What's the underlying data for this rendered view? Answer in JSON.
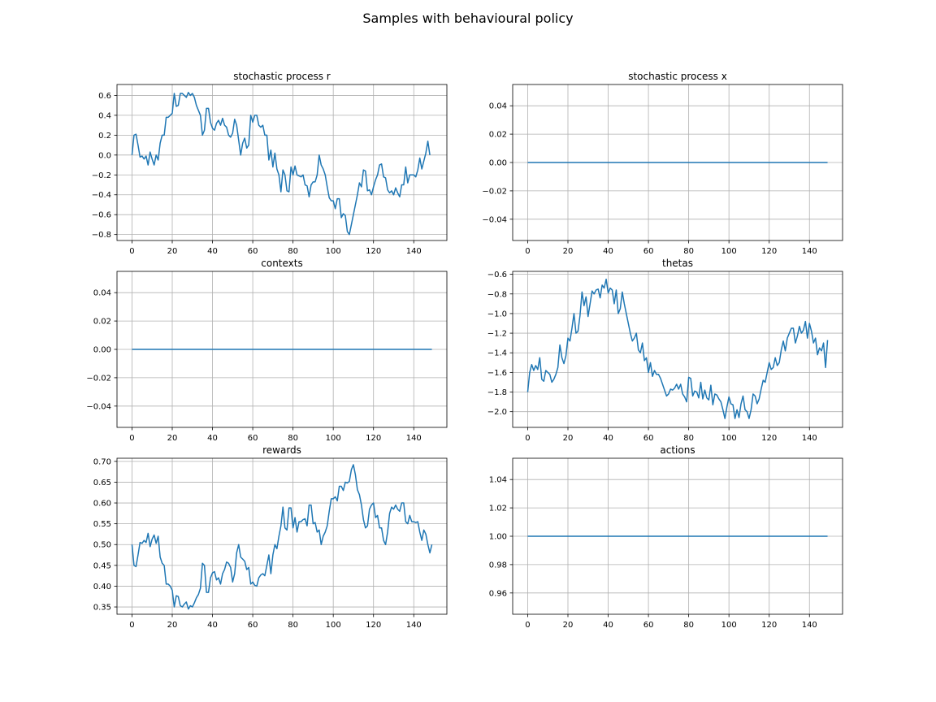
{
  "figure": {
    "title": "Samples with behavioural policy",
    "line_color": "#1f77b4",
    "grid_color": "#b0b0b0"
  },
  "chart_data": [
    {
      "type": "line",
      "title": "stochastic process r",
      "xlabel": "",
      "ylabel": "",
      "xlim": [
        -7.45,
        156.45
      ],
      "ylim": [
        -0.86,
        0.71
      ],
      "xticks": [
        0,
        20,
        40,
        60,
        80,
        100,
        120,
        140
      ],
      "yticks": [
        0.6,
        0.4,
        0.2,
        0.0,
        -0.2,
        -0.4,
        -0.6,
        -0.8
      ],
      "ytick_labels": [
        "0.6",
        "0.4",
        "0.2",
        "0.0",
        "−0.2",
        "−0.4",
        "−0.6",
        "−0.8"
      ],
      "grid": true,
      "series": [
        {
          "values": [
            0.0,
            0.2,
            0.21,
            0.1,
            -0.02,
            -0.01,
            -0.04,
            -0.01,
            -0.1,
            0.03,
            -0.04,
            -0.1,
            0.0,
            -0.05,
            0.12,
            0.2,
            0.2,
            0.38,
            0.38,
            0.4,
            0.42,
            0.62,
            0.49,
            0.5,
            0.62,
            0.62,
            0.6,
            0.58,
            0.63,
            0.6,
            0.62,
            0.58,
            0.5,
            0.45,
            0.4,
            0.2,
            0.25,
            0.47,
            0.47,
            0.33,
            0.27,
            0.25,
            0.32,
            0.35,
            0.3,
            0.37,
            0.3,
            0.28,
            0.2,
            0.18,
            0.22,
            0.36,
            0.3,
            0.15,
            0.0,
            0.12,
            0.17,
            0.07,
            0.1,
            0.4,
            0.33,
            0.4,
            0.4,
            0.3,
            0.28,
            0.3,
            0.2,
            0.2,
            -0.05,
            0.05,
            -0.12,
            0.02,
            -0.14,
            -0.2,
            -0.37,
            -0.15,
            -0.2,
            -0.36,
            -0.37,
            -0.12,
            -0.2,
            -0.11,
            -0.2,
            -0.21,
            -0.22,
            -0.2,
            -0.3,
            -0.31,
            -0.42,
            -0.3,
            -0.27,
            -0.27,
            -0.2,
            0.0,
            -0.1,
            -0.14,
            -0.2,
            -0.32,
            -0.43,
            -0.46,
            -0.46,
            -0.54,
            -0.44,
            -0.44,
            -0.63,
            -0.59,
            -0.61,
            -0.77,
            -0.8,
            -0.7,
            -0.6,
            -0.5,
            -0.4,
            -0.28,
            -0.32,
            -0.15,
            -0.16,
            -0.36,
            -0.35,
            -0.4,
            -0.32,
            -0.25,
            -0.2,
            -0.1,
            -0.09,
            -0.22,
            -0.23,
            -0.35,
            -0.38,
            -0.36,
            -0.4,
            -0.33,
            -0.38,
            -0.42,
            -0.3,
            -0.3,
            -0.12,
            -0.28,
            -0.2,
            -0.2,
            -0.2,
            -0.22,
            -0.15,
            -0.03,
            -0.14,
            -0.06,
            0.02,
            0.14,
            0.0
          ]
        }
      ]
    },
    {
      "type": "line",
      "title": "stochastic process x",
      "xlabel": "",
      "ylabel": "",
      "xlim": [
        -7.45,
        156.45
      ],
      "ylim": [
        -0.055,
        0.055
      ],
      "xticks": [
        0,
        20,
        40,
        60,
        80,
        100,
        120,
        140
      ],
      "yticks": [
        0.04,
        0.02,
        0.0,
        -0.02,
        -0.04
      ],
      "ytick_labels": [
        "0.04",
        "0.02",
        "0.00",
        "−0.02",
        "−0.04"
      ],
      "grid": true,
      "series": [
        {
          "x_range": [
            0,
            149
          ],
          "constant": 0.0
        }
      ]
    },
    {
      "type": "line",
      "title": "contexts",
      "xlabel": "",
      "ylabel": "",
      "xlim": [
        -7.45,
        156.45
      ],
      "ylim": [
        -0.055,
        0.055
      ],
      "xticks": [
        0,
        20,
        40,
        60,
        80,
        100,
        120,
        140
      ],
      "yticks": [
        0.04,
        0.02,
        0.0,
        -0.02,
        -0.04
      ],
      "ytick_labels": [
        "0.04",
        "0.02",
        "0.00",
        "−0.02",
        "−0.04"
      ],
      "grid": true,
      "series": [
        {
          "x_range": [
            0,
            149
          ],
          "constant": 0.0
        }
      ]
    },
    {
      "type": "line",
      "title": "thetas",
      "xlabel": "",
      "ylabel": "",
      "xlim": [
        -7.45,
        156.45
      ],
      "ylim": [
        -2.16,
        -0.57
      ],
      "xticks": [
        0,
        20,
        40,
        60,
        80,
        100,
        120,
        140
      ],
      "yticks": [
        -0.6,
        -0.8,
        -1.0,
        -1.2,
        -1.4,
        -1.6,
        -1.8,
        -2.0
      ],
      "ytick_labels": [
        "−0.6",
        "−0.8",
        "−1.0",
        "−1.2",
        "−1.4",
        "−1.6",
        "−1.8",
        "−2.0"
      ],
      "grid": true,
      "series": [
        {
          "values": [
            -1.8,
            -1.6,
            -1.52,
            -1.58,
            -1.53,
            -1.57,
            -1.45,
            -1.67,
            -1.69,
            -1.58,
            -1.6,
            -1.62,
            -1.7,
            -1.67,
            -1.62,
            -1.55,
            -1.32,
            -1.45,
            -1.51,
            -1.43,
            -1.25,
            -1.28,
            -1.15,
            -1.0,
            -1.2,
            -1.18,
            -1.02,
            -0.78,
            -0.92,
            -0.83,
            -1.03,
            -0.9,
            -0.77,
            -0.8,
            -0.76,
            -0.75,
            -0.84,
            -0.71,
            -0.74,
            -0.65,
            -0.79,
            -0.74,
            -0.76,
            -0.9,
            -0.76,
            -1.0,
            -0.95,
            -0.78,
            -0.9,
            -1.0,
            -1.1,
            -1.2,
            -1.28,
            -1.25,
            -1.2,
            -1.37,
            -1.4,
            -1.3,
            -1.48,
            -1.45,
            -1.6,
            -1.5,
            -1.64,
            -1.58,
            -1.62,
            -1.62,
            -1.66,
            -1.72,
            -1.78,
            -1.84,
            -1.82,
            -1.77,
            -1.78,
            -1.76,
            -1.72,
            -1.77,
            -1.72,
            -1.82,
            -1.85,
            -1.9,
            -1.65,
            -1.66,
            -1.84,
            -1.79,
            -1.8,
            -1.86,
            -1.7,
            -1.87,
            -1.78,
            -1.86,
            -1.88,
            -1.73,
            -1.93,
            -1.82,
            -1.83,
            -1.87,
            -1.9,
            -1.98,
            -2.07,
            -1.95,
            -1.85,
            -1.92,
            -1.93,
            -2.07,
            -1.98,
            -2.06,
            -1.92,
            -1.84,
            -1.98,
            -2.0,
            -2.07,
            -1.98,
            -1.82,
            -1.84,
            -1.92,
            -1.87,
            -1.77,
            -1.68,
            -1.7,
            -1.6,
            -1.5,
            -1.57,
            -1.55,
            -1.45,
            -1.53,
            -1.5,
            -1.37,
            -1.28,
            -1.38,
            -1.25,
            -1.2,
            -1.15,
            -1.15,
            -1.3,
            -1.23,
            -1.13,
            -1.2,
            -1.17,
            -1.08,
            -1.25,
            -1.1,
            -1.18,
            -1.3,
            -1.25,
            -1.42,
            -1.35,
            -1.38,
            -1.3,
            -1.55,
            -1.27
          ]
        }
      ]
    },
    {
      "type": "line",
      "title": "rewards",
      "xlabel": "",
      "ylabel": "",
      "xlim": [
        -7.45,
        156.45
      ],
      "ylim": [
        0.3325,
        0.7075
      ],
      "xticks": [
        0,
        20,
        40,
        60,
        80,
        100,
        120,
        140
      ],
      "yticks": [
        0.7,
        0.65,
        0.6,
        0.55,
        0.5,
        0.45,
        0.4,
        0.35
      ],
      "ytick_labels": [
        "0.70",
        "0.65",
        "0.60",
        "0.55",
        "0.50",
        "0.45",
        "0.40",
        "0.35"
      ],
      "grid": true,
      "series": [
        {
          "values": [
            0.5,
            0.45,
            0.447,
            0.475,
            0.505,
            0.503,
            0.51,
            0.505,
            0.527,
            0.495,
            0.513,
            0.523,
            0.503,
            0.52,
            0.47,
            0.455,
            0.45,
            0.405,
            0.405,
            0.4,
            0.39,
            0.35,
            0.377,
            0.375,
            0.353,
            0.35,
            0.357,
            0.362,
            0.345,
            0.353,
            0.35,
            0.36,
            0.372,
            0.38,
            0.395,
            0.455,
            0.45,
            0.385,
            0.385,
            0.42,
            0.432,
            0.435,
            0.415,
            0.42,
            0.405,
            0.43,
            0.44,
            0.458,
            0.455,
            0.445,
            0.41,
            0.43,
            0.48,
            0.5,
            0.47,
            0.465,
            0.46,
            0.44,
            0.445,
            0.405,
            0.41,
            0.402,
            0.4,
            0.42,
            0.427,
            0.43,
            0.425,
            0.45,
            0.475,
            0.43,
            0.475,
            0.5,
            0.49,
            0.52,
            0.545,
            0.59,
            0.54,
            0.535,
            0.588,
            0.588,
            0.54,
            0.565,
            0.53,
            0.555,
            0.555,
            0.56,
            0.562,
            0.545,
            0.595,
            0.595,
            0.55,
            0.553,
            0.53,
            0.535,
            0.5,
            0.52,
            0.53,
            0.545,
            0.58,
            0.61,
            0.61,
            0.615,
            0.605,
            0.64,
            0.64,
            0.63,
            0.65,
            0.648,
            0.652,
            0.68,
            0.692,
            0.668,
            0.632,
            0.62,
            0.595,
            0.56,
            0.54,
            0.545,
            0.585,
            0.595,
            0.6,
            0.565,
            0.57,
            0.54,
            0.54,
            0.51,
            0.5,
            0.53,
            0.575,
            0.59,
            0.585,
            0.595,
            0.585,
            0.58,
            0.6,
            0.6,
            0.555,
            0.55,
            0.57,
            0.555,
            0.555,
            0.553,
            0.555,
            0.53,
            0.51,
            0.535,
            0.525,
            0.5,
            0.48,
            0.5
          ]
        }
      ]
    },
    {
      "type": "line",
      "title": "actions",
      "xlabel": "",
      "ylabel": "",
      "xlim": [
        -7.45,
        156.45
      ],
      "ylim": [
        0.945,
        1.055
      ],
      "xticks": [
        0,
        20,
        40,
        60,
        80,
        100,
        120,
        140
      ],
      "yticks": [
        1.04,
        1.02,
        1.0,
        0.98,
        0.96
      ],
      "ytick_labels": [
        "1.04",
        "1.02",
        "1.00",
        "0.98",
        "0.96"
      ],
      "grid": true,
      "series": [
        {
          "x_range": [
            0,
            149
          ],
          "constant": 1.0
        }
      ]
    }
  ]
}
